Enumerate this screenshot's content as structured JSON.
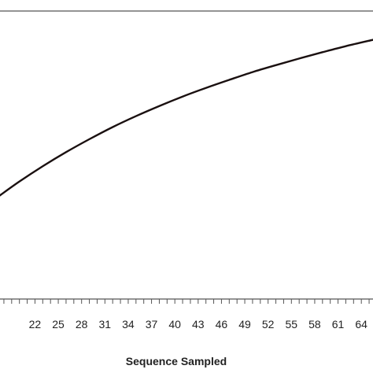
{
  "chart_data": {
    "type": "line",
    "title": "",
    "xlabel": "Sequence Sampled",
    "ylabel": "",
    "xlim": [
      17.5,
      65.5
    ],
    "ylim": [
      0,
      100
    ],
    "x_tick_labels": [
      22,
      25,
      28,
      31,
      34,
      37,
      40,
      43,
      46,
      49,
      52,
      55,
      58,
      61,
      64
    ],
    "x_minor_tick_step": 1,
    "grid": false,
    "legend": "none",
    "series": [
      {
        "color": "#1a1010",
        "x": [
          17.5,
          20,
          23,
          26,
          29,
          32,
          35,
          38,
          41,
          44,
          47,
          50,
          53,
          56,
          59,
          62,
          65.5
        ],
        "y": [
          36.0,
          40.8,
          46.1,
          51.0,
          55.5,
          59.7,
          63.5,
          67.0,
          70.3,
          73.3,
          76.1,
          78.8,
          81.2,
          83.5,
          85.7,
          87.8,
          90.0
        ]
      }
    ]
  },
  "colors": {
    "line": "#1a1010",
    "axis": "#555555",
    "text": "#222222",
    "background": "#ffffff"
  }
}
